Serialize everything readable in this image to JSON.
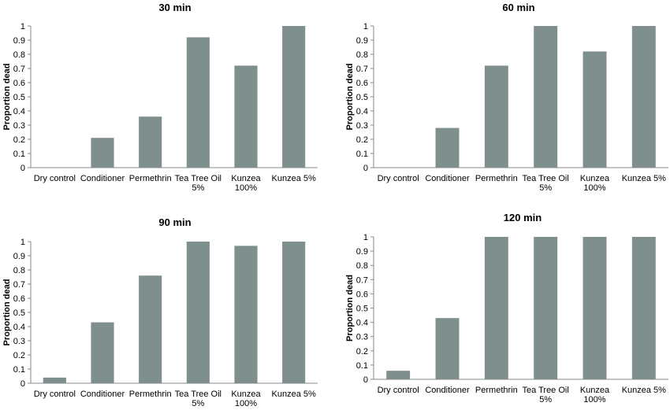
{
  "chart_data": [
    {
      "type": "bar",
      "title": "30 min",
      "ylabel": "Proportion dead",
      "xlabel": "",
      "ylim": [
        0,
        1
      ],
      "yticks": [
        "0",
        "0.1",
        "0.2",
        "0.3",
        "0.4",
        "0.5",
        "0.6",
        "0.7",
        "0.8",
        "0.9",
        "1"
      ],
      "categories": [
        [
          "Dry control"
        ],
        [
          "Conditioner"
        ],
        [
          "Permethrin"
        ],
        [
          "Tea Tree Oil",
          "5%"
        ],
        [
          "Kunzea",
          "100%"
        ],
        [
          "Kunzea 5%"
        ]
      ],
      "values": [
        0,
        0.21,
        0.36,
        0.92,
        0.72,
        1.0
      ],
      "bar_color": "#7f8f8e",
      "grid": false
    },
    {
      "type": "bar",
      "title": "60 min",
      "ylabel": "Proportion dead",
      "xlabel": "",
      "ylim": [
        0,
        1
      ],
      "yticks": [
        "0",
        "0.1",
        "0.2",
        "0.3",
        "0.4",
        "0.5",
        "0.6",
        "0.7",
        "0.8",
        "0.9",
        "1"
      ],
      "categories": [
        [
          "Dry control"
        ],
        [
          "Conditioner"
        ],
        [
          "Permethrin"
        ],
        [
          "Tea Tree Oil",
          "5%"
        ],
        [
          "Kunzea",
          "100%"
        ],
        [
          "Kunzea 5%"
        ]
      ],
      "values": [
        0,
        0.28,
        0.72,
        1.0,
        0.82,
        1.0
      ],
      "bar_color": "#7f8f8e",
      "grid": false
    },
    {
      "type": "bar",
      "title": "90 min",
      "ylabel": "Proportion dead",
      "xlabel": "",
      "ylim": [
        0,
        1
      ],
      "yticks": [
        "0",
        "0.1",
        "0.2",
        "0.3",
        "0.4",
        "0.5",
        "0.6",
        "0.7",
        "0.8",
        "0.9",
        "1"
      ],
      "categories": [
        [
          "Dry control"
        ],
        [
          "Conditioner"
        ],
        [
          "Permethrin"
        ],
        [
          "Tea Tree Oil",
          "5%"
        ],
        [
          "Kunzea",
          "100%"
        ],
        [
          "Kunzea 5%"
        ]
      ],
      "values": [
        0.04,
        0.43,
        0.76,
        1.0,
        0.97,
        1.0
      ],
      "bar_color": "#7f8f8e",
      "grid": false
    },
    {
      "type": "bar",
      "title": "120 min",
      "ylabel": "Proportion dead",
      "xlabel": "",
      "ylim": [
        0,
        1
      ],
      "yticks": [
        "0",
        "0.1",
        "0.2",
        "0.3",
        "0.4",
        "0.5",
        "0.6",
        "0.7",
        "0.8",
        "0.9",
        "1"
      ],
      "categories": [
        [
          "Dry control"
        ],
        [
          "Conditioner"
        ],
        [
          "Permethrin"
        ],
        [
          "Tea Tree Oil",
          "5%"
        ],
        [
          "Kunzea",
          "100%"
        ],
        [
          "Kunzea 5%"
        ]
      ],
      "values": [
        0.06,
        0.43,
        1.0,
        1.0,
        1.0,
        1.0
      ],
      "bar_color": "#7f8f8e",
      "grid": false
    }
  ]
}
